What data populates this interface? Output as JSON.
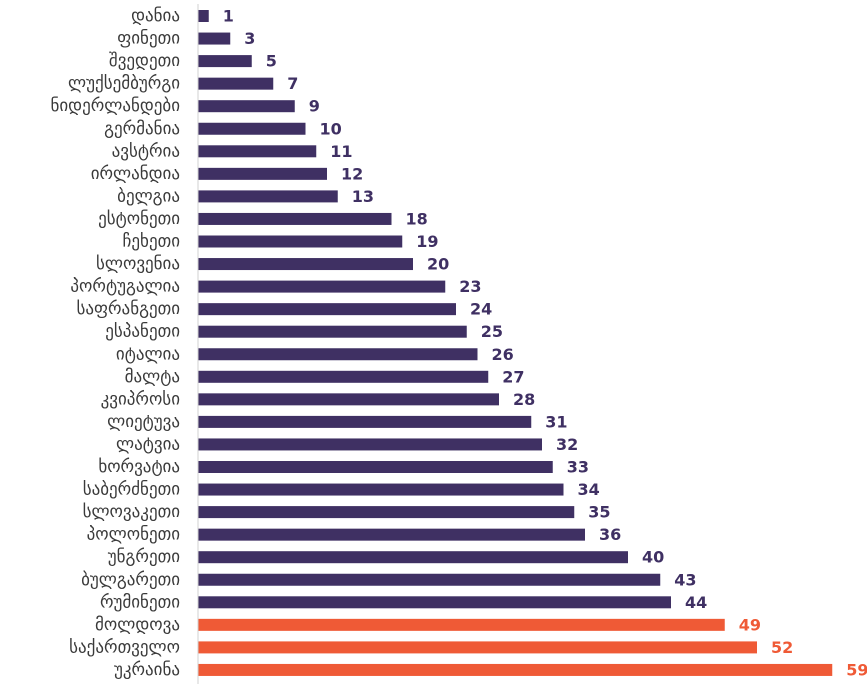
{
  "chart_data": {
    "type": "bar",
    "orientation": "horizontal",
    "categories": [
      "დანია",
      "ფინეთი",
      "შვედეთი",
      "ლუქსემბურგი",
      "ნიდერლანდები",
      "გერმანია",
      "ავსტრია",
      "ირლანდია",
      "ბელგია",
      "ესტონეთი",
      "ჩეხეთი",
      "სლოვენია",
      "პორტუგალია",
      "საფრანგეთი",
      "ესპანეთი",
      "იტალია",
      "მალტა",
      "კვიპროსი",
      "ლიეტუვა",
      "ლატვია",
      "ხორვატია",
      "საბერძნეთი",
      "სლოვაკეთი",
      "პოლონეთი",
      "უნგრეთი",
      "ბულგარეთი",
      "რუმინეთი",
      "მოლდოვა",
      "საქართველო",
      "უკრაინა"
    ],
    "values": [
      1,
      3,
      5,
      7,
      9,
      10,
      11,
      12,
      13,
      18,
      19,
      20,
      23,
      24,
      25,
      26,
      27,
      28,
      31,
      32,
      33,
      34,
      35,
      36,
      40,
      43,
      44,
      49,
      52,
      59
    ],
    "highlighted": [
      "მოლდოვა",
      "საქართველო",
      "უკრაინა"
    ],
    "colors": {
      "default": "#3f3063",
      "highlight": "#ef5a36"
    },
    "title": "",
    "xlabel": "",
    "ylabel": "",
    "xlim": [
      0,
      60
    ],
    "grid": false,
    "data_labels": true
  }
}
